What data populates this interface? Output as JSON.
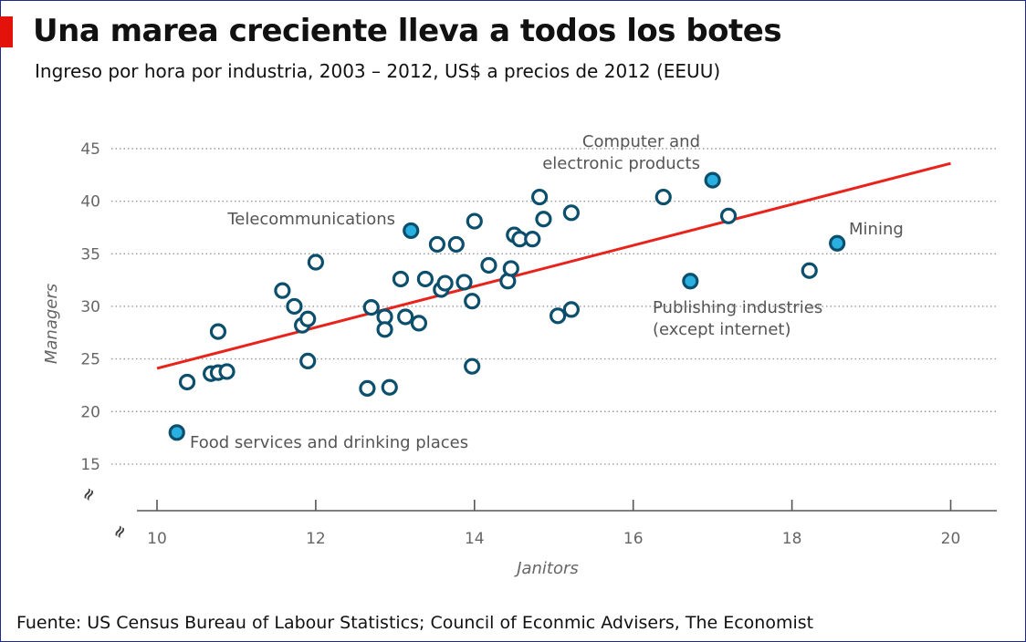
{
  "header": {
    "title": "Una marea creciente lleva a todos los botes",
    "subtitle": "Ingreso por hora por industria, 2003 – 2012, US$ a precios de 2012 (EEUU)"
  },
  "footer": {
    "source": "Fuente: US Census Bureau of Labour Statistics; Council of Econmic Advisers, The Economist"
  },
  "colors": {
    "accent": "#e3120b",
    "marker_stroke": "#0b4f6c",
    "marker_fill": "#ffffff",
    "marker_highlight_fill": "#2ab0e0",
    "trend": "#e8231c",
    "grid": "#999999"
  },
  "chart_data": {
    "type": "scatter",
    "title": "Una marea creciente lleva a todos los botes",
    "xlabel": "Janitors",
    "ylabel": "Managers",
    "xlim": [
      10,
      21
    ],
    "ylim": [
      15,
      45
    ],
    "xticks": [
      10,
      12,
      14,
      16,
      18,
      20
    ],
    "yticks": [
      15,
      20,
      25,
      30,
      35,
      40,
      45
    ],
    "grid": "horizontal dotted",
    "axis_break_symbol": "≈",
    "trendline": {
      "x": [
        10,
        20
      ],
      "y": [
        24.1,
        43.6
      ]
    },
    "points": [
      {
        "x": 10.25,
        "y": 18.0,
        "highlight": true
      },
      {
        "x": 10.38,
        "y": 22.8
      },
      {
        "x": 10.68,
        "y": 23.6
      },
      {
        "x": 10.77,
        "y": 23.7
      },
      {
        "x": 10.88,
        "y": 23.8
      },
      {
        "x": 10.77,
        "y": 27.6
      },
      {
        "x": 11.58,
        "y": 31.5
      },
      {
        "x": 11.73,
        "y": 30.0
      },
      {
        "x": 11.83,
        "y": 28.2
      },
      {
        "x": 11.9,
        "y": 28.8
      },
      {
        "x": 11.9,
        "y": 24.8
      },
      {
        "x": 12.0,
        "y": 34.2
      },
      {
        "x": 12.65,
        "y": 22.2
      },
      {
        "x": 12.7,
        "y": 29.9
      },
      {
        "x": 12.87,
        "y": 29.0
      },
      {
        "x": 12.87,
        "y": 27.8
      },
      {
        "x": 12.93,
        "y": 22.3
      },
      {
        "x": 13.07,
        "y": 32.6
      },
      {
        "x": 13.13,
        "y": 29.0
      },
      {
        "x": 13.2,
        "y": 37.2,
        "highlight": true
      },
      {
        "x": 13.3,
        "y": 28.4
      },
      {
        "x": 13.38,
        "y": 32.6
      },
      {
        "x": 13.53,
        "y": 35.9
      },
      {
        "x": 13.58,
        "y": 31.6
      },
      {
        "x": 13.63,
        "y": 32.2
      },
      {
        "x": 13.77,
        "y": 35.9
      },
      {
        "x": 13.87,
        "y": 32.3
      },
      {
        "x": 13.97,
        "y": 30.5
      },
      {
        "x": 13.97,
        "y": 24.3
      },
      {
        "x": 14.0,
        "y": 38.1
      },
      {
        "x": 14.18,
        "y": 33.9
      },
      {
        "x": 14.42,
        "y": 32.4
      },
      {
        "x": 14.46,
        "y": 33.6
      },
      {
        "x": 14.5,
        "y": 36.8
      },
      {
        "x": 14.57,
        "y": 36.4
      },
      {
        "x": 14.73,
        "y": 36.4
      },
      {
        "x": 14.82,
        "y": 40.4
      },
      {
        "x": 14.87,
        "y": 38.3
      },
      {
        "x": 15.05,
        "y": 29.1
      },
      {
        "x": 15.22,
        "y": 29.7
      },
      {
        "x": 15.22,
        "y": 38.9
      },
      {
        "x": 16.38,
        "y": 40.4
      },
      {
        "x": 16.72,
        "y": 32.4,
        "highlight": true
      },
      {
        "x": 17.0,
        "y": 42.0,
        "highlight": true
      },
      {
        "x": 17.2,
        "y": 38.6
      },
      {
        "x": 18.22,
        "y": 33.4
      },
      {
        "x": 18.57,
        "y": 36.0,
        "highlight": true
      }
    ],
    "annotations": [
      {
        "lines": [
          "Food services and drinking places"
        ]
      },
      {
        "lines": [
          "Telecommunications"
        ]
      },
      {
        "lines": [
          "Computer and",
          "electronic products"
        ]
      },
      {
        "lines": [
          "Mining"
        ]
      },
      {
        "lines": [
          "Publishing industries",
          "(except internet)"
        ]
      }
    ]
  }
}
